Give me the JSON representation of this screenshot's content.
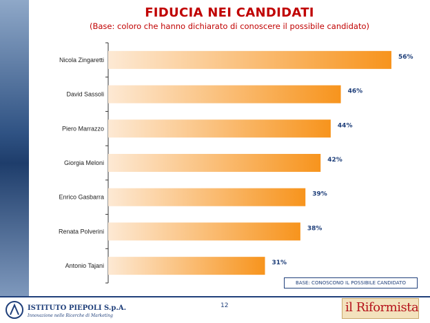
{
  "header": {
    "title": "FIDUCIA NEI CANDIDATI",
    "subtitle": "(Base: coloro che hanno dichiarato di conoscere il possibile candidato)"
  },
  "chart_data": {
    "type": "bar",
    "orientation": "horizontal",
    "categories": [
      "Nicola Zingaretti",
      "David Sassoli",
      "Piero Marrazzo",
      "Giorgia Meloni",
      "Enrico Gasbarra",
      "Renata Polverini",
      "Antonio Tajani"
    ],
    "values": [
      56,
      46,
      44,
      42,
      39,
      38,
      31
    ],
    "value_labels": [
      "56%",
      "46%",
      "44%",
      "42%",
      "39%",
      "38%",
      "31%"
    ],
    "xlim": [
      0,
      60
    ],
    "bar_color_start": "#fde9d4",
    "bar_color_end": "#f7941d"
  },
  "note": "BASE: CONOSCONO IL POSSIBILE CANDIDATO",
  "footer": {
    "page_number": "12",
    "logo_left_name": "ISTITUTO PIEPOLI S.p.A.",
    "logo_left_tagline": "Innovazione nelle Ricerche di Marketing",
    "logo_right": "il Riformista"
  },
  "colors": {
    "title": "#c00000",
    "navy": "#1f3f7a",
    "bar": "#f7941d"
  }
}
